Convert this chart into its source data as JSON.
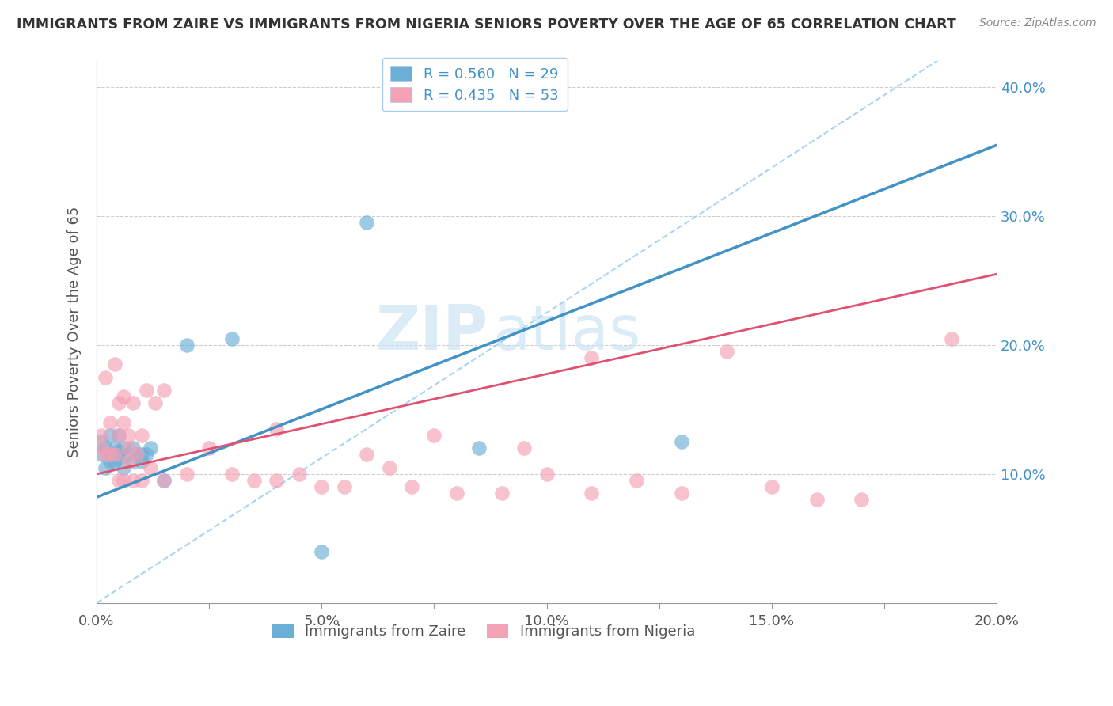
{
  "title": "IMMIGRANTS FROM ZAIRE VS IMMIGRANTS FROM NIGERIA SENIORS POVERTY OVER THE AGE OF 65 CORRELATION CHART",
  "source": "Source: ZipAtlas.com",
  "ylabel": "Seniors Poverty Over the Age of 65",
  "xlabel_zaire": "Immigrants from Zaire",
  "xlabel_nigeria": "Immigrants from Nigeria",
  "zaire_R": 0.56,
  "zaire_N": 29,
  "nigeria_R": 0.435,
  "nigeria_N": 53,
  "zaire_color": "#6baed6",
  "nigeria_color": "#f4a0b5",
  "zaire_line_color": "#4292c6",
  "nigeria_line_color": "#e05070",
  "watermark_zip": "ZIP",
  "watermark_atlas": "atlas",
  "xlim": [
    0.0,
    0.2
  ],
  "ylim": [
    0.0,
    0.42
  ],
  "yticks": [
    0.1,
    0.2,
    0.3,
    0.4
  ],
  "xticks": [
    0.0,
    0.025,
    0.05,
    0.075,
    0.1,
    0.125,
    0.15,
    0.175,
    0.2
  ],
  "xtick_labels": [
    "0.0%",
    "",
    "5.0%",
    "",
    "10.0%",
    "",
    "15.0%",
    "",
    "20.0%"
  ],
  "zaire_line_x0": 0.0,
  "zaire_line_y0": 0.082,
  "zaire_line_x1": 0.2,
  "zaire_line_y1": 0.355,
  "nigeria_line_x0": 0.0,
  "nigeria_line_y0": 0.1,
  "nigeria_line_x1": 0.2,
  "nigeria_line_y1": 0.255,
  "zaire_x": [
    0.001,
    0.001,
    0.002,
    0.002,
    0.003,
    0.003,
    0.003,
    0.004,
    0.004,
    0.005,
    0.005,
    0.005,
    0.006,
    0.006,
    0.007,
    0.008,
    0.008,
    0.009,
    0.01,
    0.01,
    0.011,
    0.012,
    0.015,
    0.02,
    0.03,
    0.06,
    0.085,
    0.13,
    0.05
  ],
  "zaire_y": [
    0.115,
    0.125,
    0.105,
    0.12,
    0.11,
    0.115,
    0.13,
    0.11,
    0.12,
    0.112,
    0.118,
    0.13,
    0.105,
    0.12,
    0.115,
    0.11,
    0.12,
    0.115,
    0.11,
    0.115,
    0.115,
    0.12,
    0.095,
    0.2,
    0.205,
    0.295,
    0.12,
    0.125,
    0.04
  ],
  "nigeria_x": [
    0.001,
    0.001,
    0.002,
    0.002,
    0.003,
    0.003,
    0.004,
    0.004,
    0.005,
    0.005,
    0.005,
    0.006,
    0.006,
    0.006,
    0.007,
    0.007,
    0.007,
    0.008,
    0.008,
    0.009,
    0.01,
    0.01,
    0.011,
    0.012,
    0.013,
    0.015,
    0.015,
    0.02,
    0.025,
    0.03,
    0.035,
    0.04,
    0.04,
    0.045,
    0.05,
    0.055,
    0.06,
    0.065,
    0.07,
    0.075,
    0.08,
    0.09,
    0.095,
    0.1,
    0.11,
    0.11,
    0.12,
    0.13,
    0.14,
    0.15,
    0.16,
    0.17,
    0.19
  ],
  "nigeria_y": [
    0.12,
    0.13,
    0.115,
    0.175,
    0.115,
    0.14,
    0.115,
    0.185,
    0.095,
    0.13,
    0.155,
    0.095,
    0.14,
    0.16,
    0.11,
    0.12,
    0.13,
    0.095,
    0.155,
    0.115,
    0.095,
    0.13,
    0.165,
    0.105,
    0.155,
    0.095,
    0.165,
    0.1,
    0.12,
    0.1,
    0.095,
    0.095,
    0.135,
    0.1,
    0.09,
    0.09,
    0.115,
    0.105,
    0.09,
    0.13,
    0.085,
    0.085,
    0.12,
    0.1,
    0.085,
    0.19,
    0.095,
    0.085,
    0.195,
    0.09,
    0.08,
    0.08,
    0.205
  ]
}
